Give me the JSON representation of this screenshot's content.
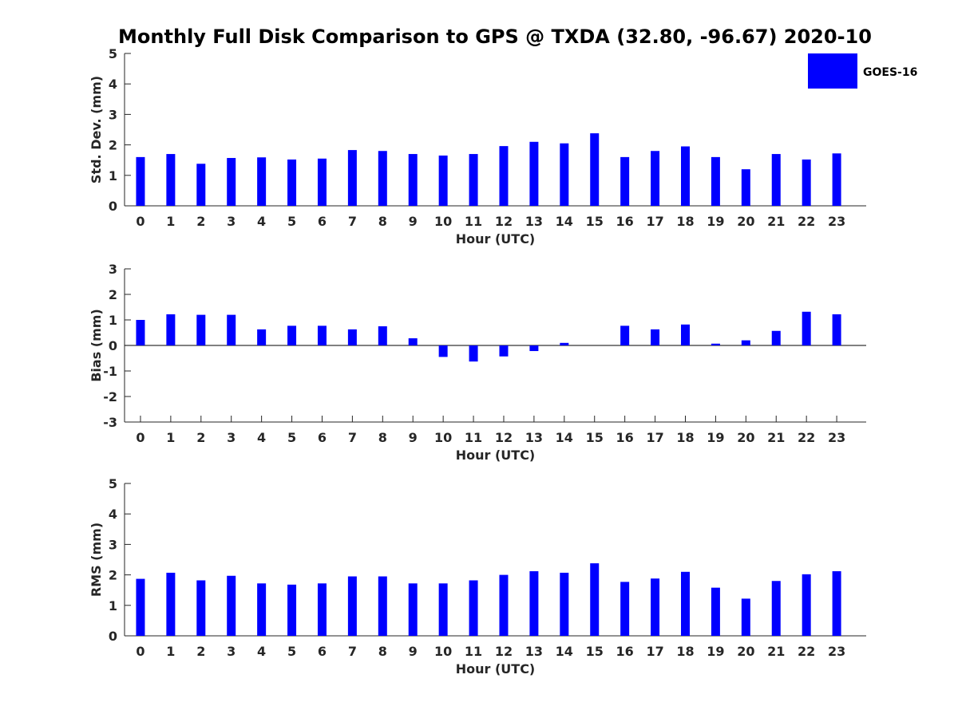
{
  "title": "Monthly Full Disk Comparison to GPS @ TXDA (32.80, -96.67) 2020-10",
  "legend": {
    "label": "GOES-16",
    "color": "#0000ff",
    "placement": "top-right"
  },
  "chart_data": [
    {
      "type": "bar",
      "title": "",
      "xlabel": "Hour (UTC)",
      "ylabel": "Std. Dev. (mm)",
      "categories": [
        "0",
        "1",
        "2",
        "3",
        "4",
        "5",
        "6",
        "7",
        "8",
        "9",
        "10",
        "11",
        "12",
        "13",
        "14",
        "15",
        "16",
        "17",
        "18",
        "19",
        "20",
        "21",
        "22",
        "23"
      ],
      "ylim": [
        0,
        5
      ],
      "yticks": [
        0,
        1,
        2,
        3,
        4,
        5
      ],
      "grid": false,
      "series": [
        {
          "name": "GOES-16",
          "color": "#0000ff",
          "values": [
            1.6,
            1.7,
            1.38,
            1.57,
            1.59,
            1.52,
            1.55,
            1.83,
            1.8,
            1.7,
            1.65,
            1.7,
            1.96,
            2.1,
            2.05,
            2.38,
            1.6,
            1.8,
            1.95,
            1.6,
            1.2,
            1.7,
            1.52,
            1.72
          ]
        }
      ]
    },
    {
      "type": "bar",
      "title": "",
      "xlabel": "Hour (UTC)",
      "ylabel": "Bias (mm)",
      "categories": [
        "0",
        "1",
        "2",
        "3",
        "4",
        "5",
        "6",
        "7",
        "8",
        "9",
        "10",
        "11",
        "12",
        "13",
        "14",
        "15",
        "16",
        "17",
        "18",
        "19",
        "20",
        "21",
        "22",
        "23"
      ],
      "ylim": [
        -3,
        3
      ],
      "yticks": [
        -3,
        -2,
        -1,
        0,
        1,
        2,
        3
      ],
      "grid": false,
      "series": [
        {
          "name": "GOES-16",
          "color": "#0000ff",
          "values": [
            1.0,
            1.22,
            1.2,
            1.2,
            0.63,
            0.77,
            0.77,
            0.63,
            0.75,
            0.28,
            -0.45,
            -0.63,
            -0.43,
            -0.22,
            0.1,
            0.0,
            0.77,
            0.63,
            0.82,
            0.07,
            0.2,
            0.57,
            1.32,
            1.22
          ]
        }
      ]
    },
    {
      "type": "bar",
      "title": "",
      "xlabel": "Hour (UTC)",
      "ylabel": "RMS (mm)",
      "categories": [
        "0",
        "1",
        "2",
        "3",
        "4",
        "5",
        "6",
        "7",
        "8",
        "9",
        "10",
        "11",
        "12",
        "13",
        "14",
        "15",
        "16",
        "17",
        "18",
        "19",
        "20",
        "21",
        "22",
        "23"
      ],
      "ylim": [
        0,
        5
      ],
      "yticks": [
        0,
        1,
        2,
        3,
        4,
        5
      ],
      "grid": false,
      "series": [
        {
          "name": "GOES-16",
          "color": "#0000ff",
          "values": [
            1.87,
            2.07,
            1.82,
            1.97,
            1.72,
            1.68,
            1.72,
            1.95,
            1.95,
            1.72,
            1.72,
            1.82,
            2.0,
            2.12,
            2.07,
            2.38,
            1.77,
            1.88,
            2.1,
            1.58,
            1.22,
            1.8,
            2.02,
            2.12
          ]
        }
      ]
    }
  ]
}
